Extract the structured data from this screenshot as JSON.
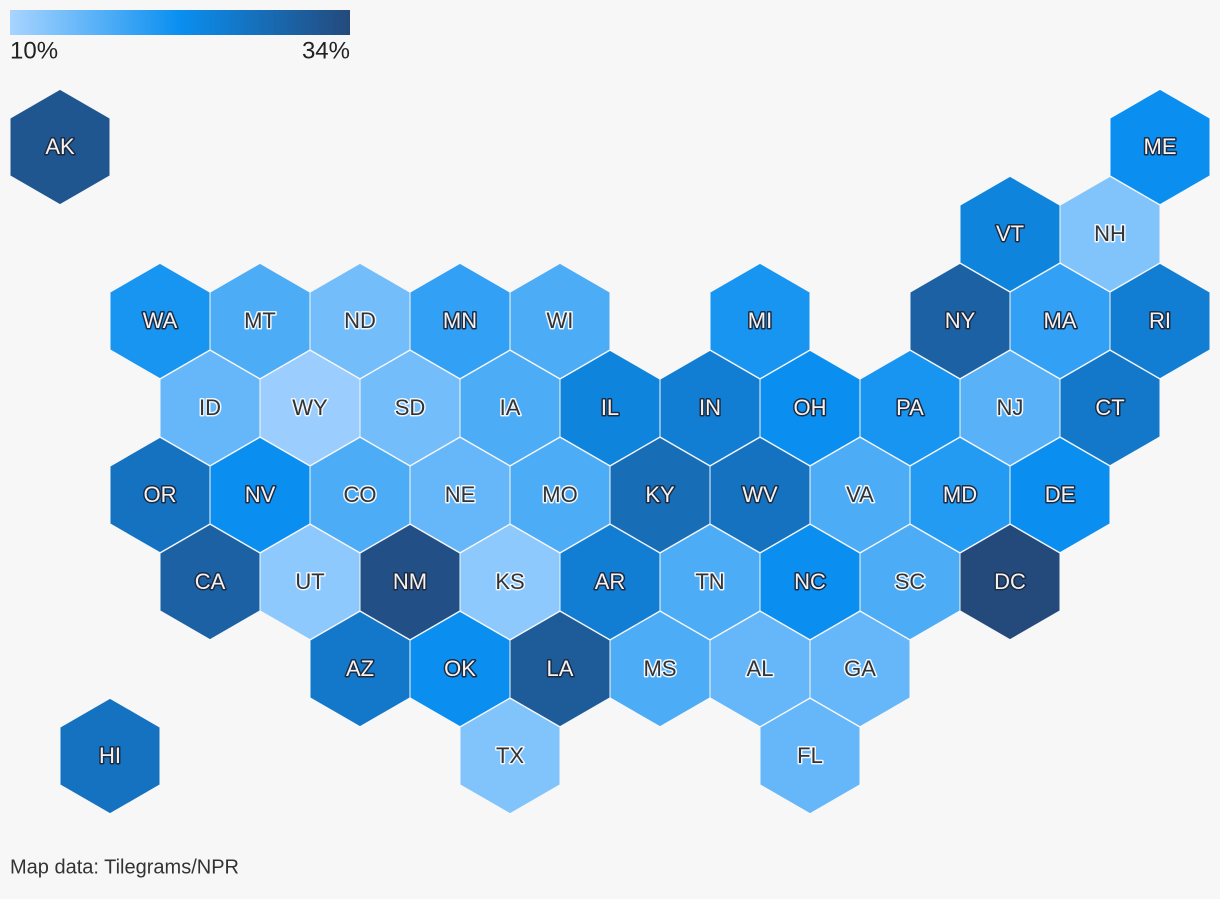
{
  "chart_data": {
    "type": "hexmap",
    "colors": [
      "#a8d4ff",
      "#0a8ff0",
      "#244a7c"
    ],
    "legend": [
      {
        "value": 10,
        "label": "10%"
      },
      {
        "value": 34,
        "label": "34%"
      }
    ],
    "rows": [
      [
        "AK",
        null,
        null,
        null,
        null,
        null,
        null,
        null,
        null,
        null,
        null,
        null,
        null,
        null,
        null,
        null,
        null,
        null,
        null,
        null,
        null,
        null,
        "ME"
      ],
      [
        null,
        null,
        null,
        null,
        null,
        null,
        null,
        null,
        null,
        null,
        null,
        null,
        null,
        null,
        null,
        null,
        null,
        null,
        null,
        "VT",
        null,
        "NH",
        null
      ],
      [
        null,
        null,
        "WA",
        null,
        "MT",
        null,
        "ND",
        null,
        "MN",
        null,
        "WI",
        null,
        null,
        null,
        "MI",
        null,
        null,
        null,
        "NY",
        null,
        "MA",
        null,
        "RI"
      ],
      [
        null,
        null,
        null,
        "ID",
        null,
        "WY",
        null,
        "SD",
        null,
        "IA",
        null,
        "IL",
        null,
        "IN",
        null,
        "OH",
        null,
        "PA",
        null,
        "NJ",
        null,
        "CT",
        null
      ],
      [
        null,
        null,
        "OR",
        null,
        "NV",
        null,
        "CO",
        null,
        "NE",
        null,
        "MO",
        null,
        "KY",
        null,
        "WV",
        null,
        "VA",
        null,
        "MD",
        null,
        "DE",
        null,
        null
      ],
      [
        null,
        null,
        null,
        "CA",
        null,
        "UT",
        null,
        "NM",
        null,
        "KS",
        null,
        "AR",
        null,
        "TN",
        null,
        "NC",
        null,
        "SC",
        null,
        "DC",
        null,
        null,
        null
      ],
      [
        null,
        null,
        null,
        null,
        null,
        null,
        "AZ",
        null,
        "OK",
        null,
        "LA",
        null,
        "MS",
        null,
        "AL",
        null,
        "GA",
        null,
        null,
        null,
        null,
        null,
        null
      ],
      [
        null,
        "HI",
        null,
        null,
        null,
        null,
        null,
        null,
        null,
        "TX",
        null,
        null,
        null,
        null,
        null,
        "FL",
        null,
        null,
        null,
        null,
        null,
        null,
        null
      ]
    ],
    "values": [
      [
        32,
        null,
        null,
        null,
        null,
        null,
        null,
        null,
        null,
        null,
        null,
        null,
        null,
        null,
        null,
        null,
        null,
        null,
        null,
        null,
        null,
        null,
        22
      ],
      [
        null,
        null,
        null,
        null,
        null,
        null,
        null,
        null,
        null,
        null,
        null,
        null,
        null,
        null,
        null,
        null,
        null,
        null,
        null,
        24,
        null,
        13,
        null
      ],
      [
        null,
        null,
        21,
        null,
        17,
        null,
        14,
        null,
        19,
        null,
        17,
        null,
        null,
        null,
        21,
        null,
        null,
        null,
        30,
        null,
        19,
        null,
        25
      ],
      [
        null,
        null,
        null,
        15,
        null,
        11,
        null,
        14,
        null,
        17,
        null,
        24,
        null,
        25,
        null,
        22,
        null,
        21,
        null,
        16,
        null,
        26,
        null
      ],
      [
        null,
        null,
        27,
        null,
        22,
        null,
        17,
        null,
        15,
        null,
        17,
        null,
        28,
        null,
        27,
        null,
        17,
        null,
        20,
        null,
        22,
        null,
        null
      ],
      [
        null,
        null,
        null,
        30,
        null,
        12,
        null,
        33,
        null,
        12,
        null,
        25,
        null,
        17,
        null,
        22,
        null,
        17,
        null,
        34,
        null,
        null,
        null
      ],
      [
        null,
        null,
        null,
        null,
        null,
        null,
        26,
        null,
        22,
        null,
        31,
        null,
        17,
        null,
        15,
        null,
        15,
        null,
        null,
        null,
        null,
        null,
        null
      ],
      [
        null,
        27,
        null,
        null,
        null,
        null,
        null,
        null,
        null,
        13,
        null,
        null,
        null,
        null,
        null,
        15,
        null,
        null,
        null,
        null,
        null,
        null,
        null
      ]
    ],
    "source": "Map data: Tilegrams/NPR"
  }
}
